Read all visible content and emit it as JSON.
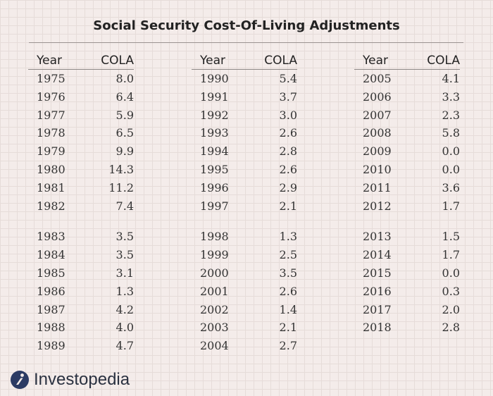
{
  "title": "Social Security Cost-Of-Living Adjustments",
  "headers": {
    "year": "Year",
    "cola": "COLA"
  },
  "brand": {
    "name": "Investopedia",
    "accent": "#2b3a63"
  },
  "chart_data": {
    "type": "table",
    "title": "Social Security Cost-Of-Living Adjustments",
    "columns": [
      "Year",
      "COLA"
    ],
    "rows": [
      [
        "1975",
        "8.0"
      ],
      [
        "1976",
        "6.4"
      ],
      [
        "1977",
        "5.9"
      ],
      [
        "1978",
        "6.5"
      ],
      [
        "1979",
        "9.9"
      ],
      [
        "1980",
        "14.3"
      ],
      [
        "1981",
        "11.2"
      ],
      [
        "1982",
        "7.4"
      ],
      [
        "1983",
        "3.5"
      ],
      [
        "1984",
        "3.5"
      ],
      [
        "1985",
        "3.1"
      ],
      [
        "1986",
        "1.3"
      ],
      [
        "1987",
        "4.2"
      ],
      [
        "1988",
        "4.0"
      ],
      [
        "1989",
        "4.7"
      ],
      [
        "1990",
        "5.4"
      ],
      [
        "1991",
        "3.7"
      ],
      [
        "1992",
        "3.0"
      ],
      [
        "1993",
        "2.6"
      ],
      [
        "1994",
        "2.8"
      ],
      [
        "1995",
        "2.6"
      ],
      [
        "1996",
        "2.9"
      ],
      [
        "1997",
        "2.1"
      ],
      [
        "1998",
        "1.3"
      ],
      [
        "1999",
        "2.5"
      ],
      [
        "2000",
        "3.5"
      ],
      [
        "2001",
        "2.6"
      ],
      [
        "2002",
        "1.4"
      ],
      [
        "2003",
        "2.1"
      ],
      [
        "2004",
        "2.7"
      ],
      [
        "2005",
        "4.1"
      ],
      [
        "2006",
        "3.3"
      ],
      [
        "2007",
        "2.3"
      ],
      [
        "2008",
        "5.8"
      ],
      [
        "2009",
        "0.0"
      ],
      [
        "2010",
        "0.0"
      ],
      [
        "2011",
        "3.6"
      ],
      [
        "2012",
        "1.7"
      ],
      [
        "2013",
        "1.5"
      ],
      [
        "2014",
        "1.7"
      ],
      [
        "2015",
        "0.0"
      ],
      [
        "2016",
        "0.3"
      ],
      [
        "2017",
        "2.0"
      ],
      [
        "2018",
        "2.8"
      ]
    ]
  }
}
